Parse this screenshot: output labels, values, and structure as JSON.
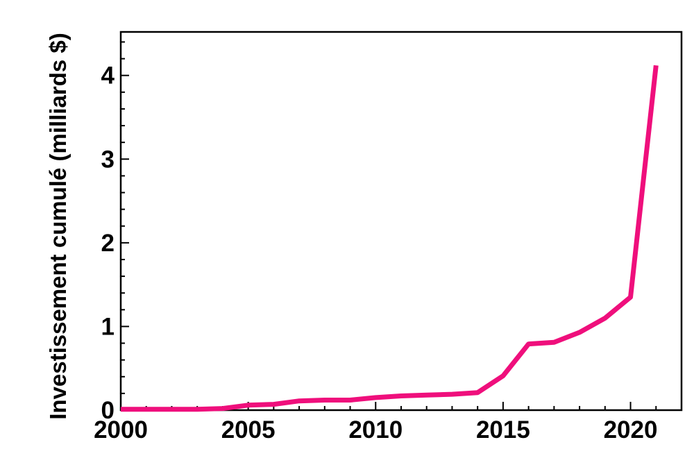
{
  "figure": {
    "background_color": "#ffffff",
    "axis_color": "#000000",
    "text_color": "#000000"
  },
  "chart_data": {
    "type": "line",
    "title": "",
    "xlabel": "",
    "ylabel": "Investissement cumulé (milliards $)",
    "x": [
      2000,
      2001,
      2002,
      2003,
      2004,
      2005,
      2006,
      2007,
      2008,
      2009,
      2010,
      2011,
      2012,
      2013,
      2014,
      2015,
      2016,
      2017,
      2018,
      2019,
      2020,
      2021
    ],
    "series": [
      {
        "name": "Investissement cumulé (milliards $)",
        "values": [
          0.01,
          0.01,
          0.01,
          0.01,
          0.02,
          0.06,
          0.07,
          0.11,
          0.12,
          0.12,
          0.15,
          0.17,
          0.18,
          0.19,
          0.21,
          0.41,
          0.79,
          0.81,
          0.93,
          1.1,
          1.35,
          4.12
        ]
      }
    ],
    "line_color": "#EF0F7C",
    "xlim": [
      2000,
      2022
    ],
    "ylim": [
      0,
      4.52
    ],
    "x_major_ticks": [
      2000,
      2005,
      2010,
      2015,
      2020
    ],
    "x_minor_tick_step": 1,
    "y_major_ticks": [
      0,
      1,
      2,
      3,
      4
    ],
    "y_minor_tick_step": 0.2,
    "grid": false,
    "legend_position": "none",
    "tick_direction": "in"
  }
}
